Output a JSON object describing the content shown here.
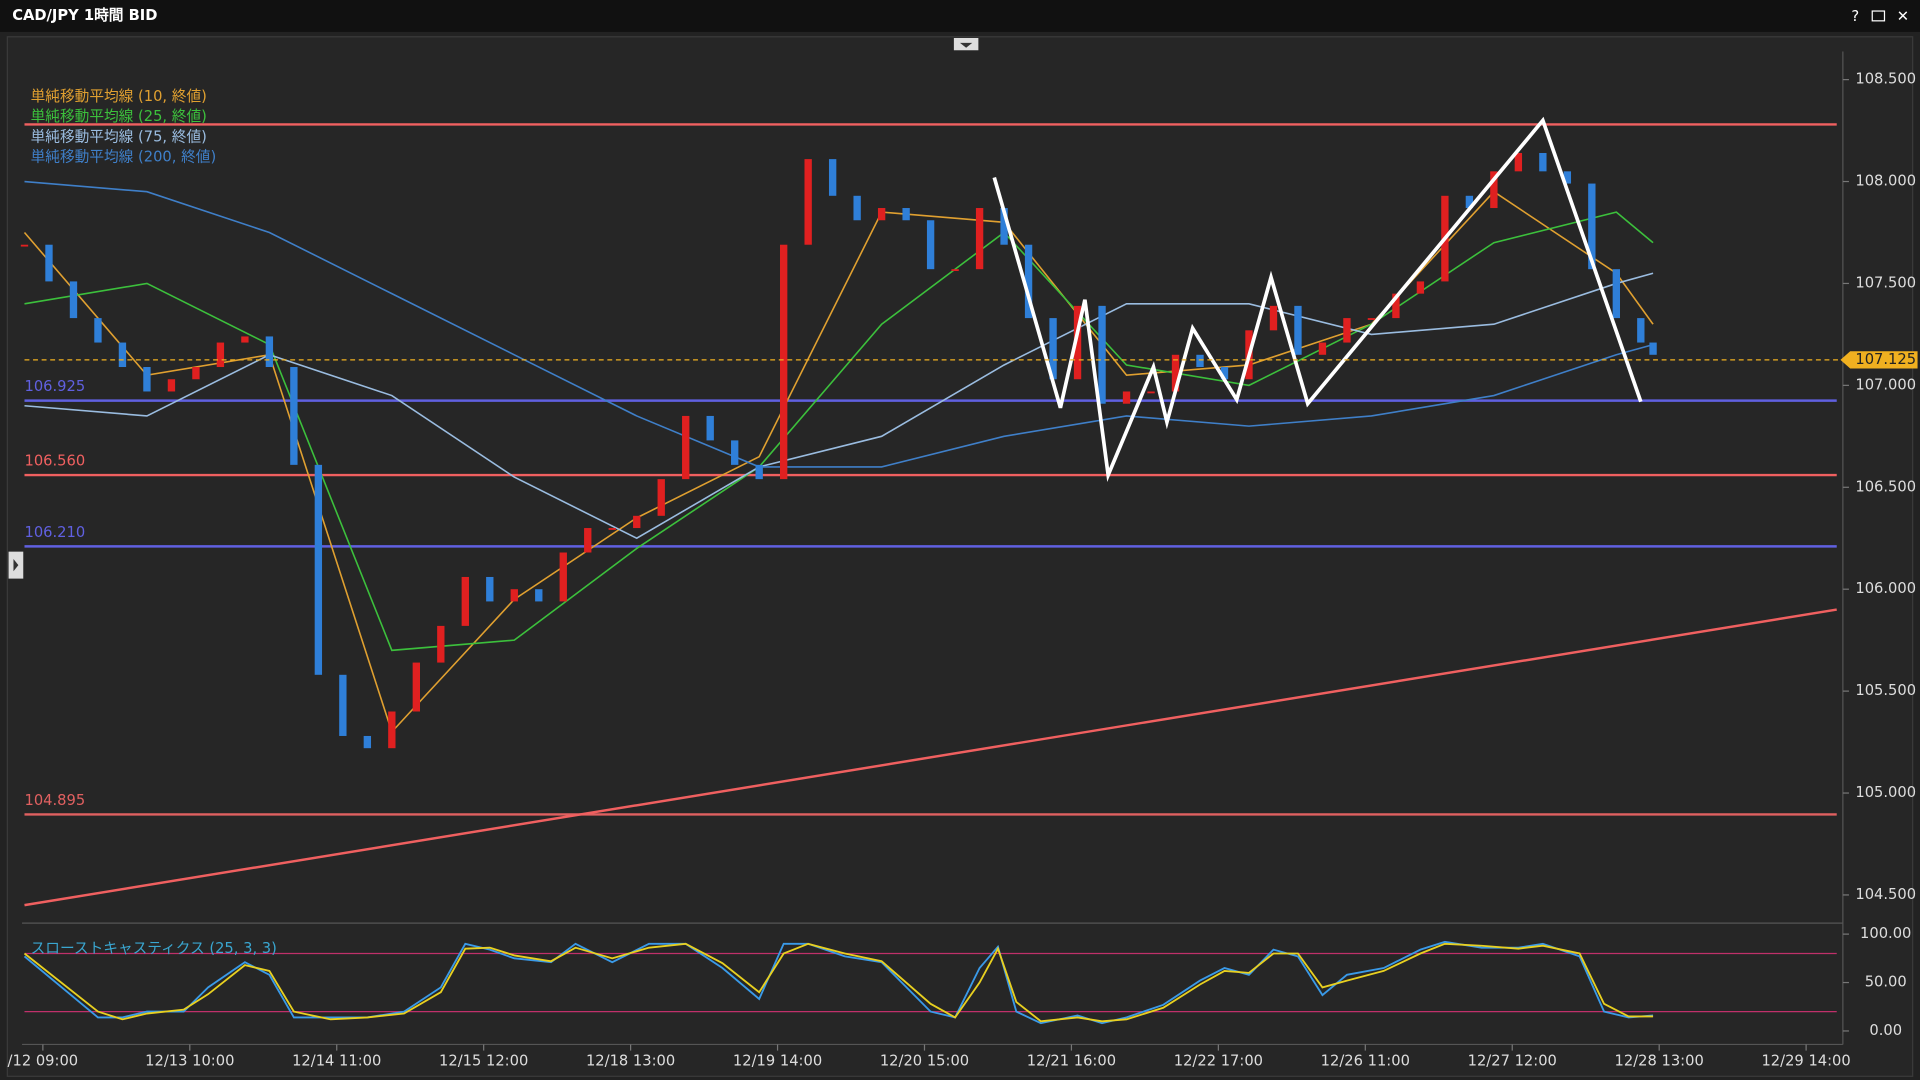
{
  "window": {
    "title": "CAD/JPY 1時間 BID"
  },
  "chart_data": [
    {
      "type": "candlestick",
      "up_color": "#e02020",
      "down_color": "#2f7fd8",
      "x": [
        0,
        4,
        8,
        12,
        16,
        20,
        24,
        28,
        32,
        36,
        40,
        44,
        48,
        52,
        56,
        60,
        64,
        68,
        72,
        76,
        80,
        84,
        88,
        92,
        96,
        100,
        104,
        108,
        112,
        116,
        120,
        124,
        128,
        132,
        136,
        140,
        144,
        148,
        152,
        156,
        160,
        164,
        168,
        172,
        176,
        180,
        184,
        188,
        192,
        196,
        200,
        204,
        208,
        212,
        216,
        220,
        224,
        228,
        232,
        236,
        240,
        244,
        248,
        252,
        256,
        260,
        264,
        266
      ],
      "closes": [
        107.69,
        107.51,
        107.33,
        107.21,
        107.09,
        106.97,
        107.03,
        107.09,
        107.21,
        107.24,
        107.09,
        106.61,
        105.58,
        105.28,
        105.22,
        105.4,
        105.64,
        105.82,
        106.06,
        105.94,
        106.0,
        105.94,
        106.18,
        106.3,
        106.3,
        106.36,
        106.54,
        106.85,
        106.73,
        106.61,
        106.54,
        107.69,
        108.11,
        107.93,
        107.81,
        107.87,
        107.81,
        107.57,
        107.57,
        107.87,
        107.69,
        107.33,
        107.03,
        107.39,
        106.91,
        106.97,
        106.97,
        107.15,
        107.09,
        107.03,
        107.27,
        107.39,
        107.15,
        107.21,
        107.33,
        107.33,
        107.45,
        107.51,
        107.93,
        107.87,
        108.05,
        108.14,
        108.05,
        107.99,
        107.57,
        107.33,
        107.21,
        107.15
      ],
      "xlim": [
        0,
        296
      ],
      "ylim": [
        104.38,
        108.65
      ],
      "yticks": [
        {
          "value": 104.5,
          "label": "104.500"
        },
        {
          "value": 105,
          "label": "105.000"
        },
        {
          "value": 105.5,
          "label": "105.500"
        },
        {
          "value": 106,
          "label": "106.000"
        },
        {
          "value": 106.5,
          "label": "106.500"
        },
        {
          "value": 107,
          "label": "107.000"
        },
        {
          "value": 107.5,
          "label": "107.500"
        },
        {
          "value": 108,
          "label": "108.000"
        },
        {
          "value": 108.5,
          "label": "108.500"
        }
      ],
      "xticks": [
        {
          "value": 3,
          "label": "/12 09:00"
        },
        {
          "value": 27,
          "label": "12/13 10:00"
        },
        {
          "value": 51,
          "label": "12/14 11:00"
        },
        {
          "value": 75,
          "label": "12/15 12:00"
        },
        {
          "value": 99,
          "label": "12/18 13:00"
        },
        {
          "value": 123,
          "label": "12/19 14:00"
        },
        {
          "value": 147,
          "label": "12/20 15:00"
        },
        {
          "value": 171,
          "label": "12/21 16:00"
        },
        {
          "value": 195,
          "label": "12/22 17:00"
        },
        {
          "value": 219,
          "label": "12/26 11:00"
        },
        {
          "value": 243,
          "label": "12/27 12:00"
        },
        {
          "value": 267,
          "label": "12/28 13:00"
        },
        {
          "value": 291,
          "label": "12/29 14:00"
        }
      ],
      "overlay_x": [
        0,
        20,
        40,
        60,
        80,
        100,
        120,
        140,
        160,
        180,
        200,
        220,
        240,
        260,
        266
      ],
      "overlays": [
        {
          "name": "単純移動平均線 (10, 終値)",
          "color": "#e0a030",
          "values": [
            107.75,
            107.05,
            107.15,
            105.3,
            105.95,
            106.35,
            106.65,
            107.85,
            107.8,
            107.05,
            107.1,
            107.3,
            107.95,
            107.55,
            107.3
          ]
        },
        {
          "name": "単純移動平均線 (25, 終値)",
          "color": "#3cc03c",
          "values": [
            107.4,
            107.5,
            107.2,
            105.7,
            105.75,
            106.2,
            106.6,
            107.3,
            107.75,
            107.1,
            107.0,
            107.3,
            107.7,
            107.85,
            107.7
          ]
        },
        {
          "name": "単純移動平均線 (75, 終値)",
          "color": "#9abce0",
          "values": [
            106.9,
            106.85,
            107.15,
            106.95,
            106.55,
            106.25,
            106.6,
            106.75,
            107.1,
            107.4,
            107.4,
            107.25,
            107.3,
            107.5,
            107.55
          ]
        },
        {
          "name": "単純移動平均線 (200, 終値)",
          "color": "#3f7fc8",
          "values": [
            108.0,
            107.95,
            107.75,
            107.45,
            107.15,
            106.85,
            106.6,
            106.6,
            106.75,
            106.85,
            106.8,
            106.85,
            106.95,
            107.15,
            107.2
          ]
        }
      ],
      "levels": [
        {
          "value": 108.28,
          "color": "#f06060"
        },
        {
          "value": 106.925,
          "color": "#6060e0"
        },
        {
          "value": 106.56,
          "label": "106.560",
          "color": "#f06060"
        },
        {
          "value": 106.21,
          "label": "106.210",
          "color": "#6060e0"
        },
        {
          "value": 104.895,
          "color": "#e06060"
        }
      ],
      "last_price": {
        "value": 107.125,
        "color": "#f0b020"
      },
      "trendline": {
        "x": [
          0,
          296
        ],
        "values": [
          104.45,
          105.9
        ],
        "color": "#f06060"
      },
      "drawing": {
        "x": [
          158.4,
          169.2,
          173.2,
          177,
          184.4,
          186.6,
          190.8,
          198,
          203.6,
          209.6,
          248,
          264
        ],
        "values": [
          108.02,
          106.89,
          107.42,
          106.56,
          107.09,
          106.82,
          107.28,
          106.93,
          107.53,
          106.91,
          108.3,
          106.92
        ],
        "color": "#ffffff"
      }
    },
    {
      "type": "stochastic",
      "title": "スローストキャスティクス (25, 3, 3)",
      "xlim": [
        0,
        296
      ],
      "ylim": [
        0,
        100
      ],
      "yticks": [
        {
          "value": 0,
          "label": "0.00"
        },
        {
          "value": 50,
          "label": "50.00"
        },
        {
          "value": 100,
          "label": "100.00"
        }
      ],
      "levels": [
        80,
        20
      ],
      "x": [
        0,
        12,
        16,
        20,
        26,
        30,
        36,
        40,
        44,
        50,
        56,
        62,
        68,
        72,
        76,
        80,
        86,
        90,
        96,
        102,
        108,
        114,
        120,
        124,
        128,
        134,
        140,
        148,
        152,
        156,
        159,
        162,
        166,
        172,
        176,
        180,
        186,
        192,
        196,
        200,
        204,
        208,
        212,
        216,
        222,
        228,
        232,
        238,
        244,
        248,
        254,
        258,
        262,
        266
      ],
      "series": [
        {
          "color": "#3a9ae8",
          "values": [
            77,
            14,
            14,
            20,
            20,
            45,
            71,
            58,
            14,
            14,
            14,
            20,
            45,
            90,
            84,
            75,
            71,
            90,
            71,
            90,
            90,
            65,
            33,
            90,
            90,
            77,
            71,
            20,
            14,
            65,
            87,
            20,
            8,
            16,
            8,
            14,
            27,
            52,
            65,
            58,
            84,
            77,
            37,
            58,
            65,
            84,
            92,
            86,
            86,
            90,
            77,
            20,
            14,
            16
          ]
        },
        {
          "color": "#e8d020",
          "values": [
            80,
            20,
            12,
            18,
            22,
            38,
            68,
            62,
            20,
            12,
            14,
            18,
            40,
            85,
            86,
            78,
            72,
            86,
            75,
            86,
            90,
            70,
            40,
            80,
            90,
            80,
            72,
            28,
            14,
            50,
            85,
            30,
            10,
            14,
            10,
            12,
            24,
            48,
            62,
            60,
            80,
            80,
            45,
            52,
            62,
            80,
            90,
            88,
            85,
            88,
            80,
            28,
            15,
            15
          ]
        }
      ]
    }
  ]
}
